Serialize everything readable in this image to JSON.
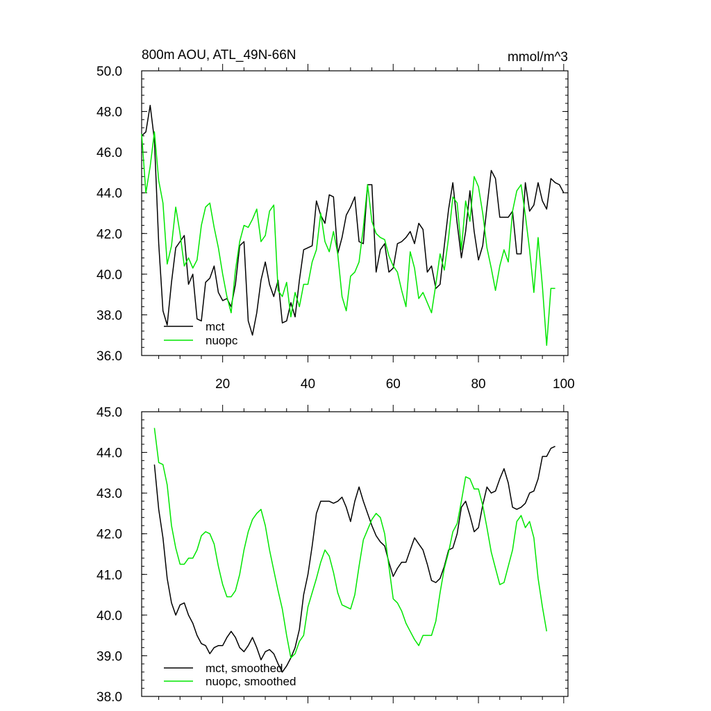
{
  "chart_data": [
    {
      "type": "line",
      "title": "800m AOU, ATL_49N-66N",
      "units": "mmol/m^3",
      "xlim": [
        1,
        101
      ],
      "ylim": [
        36.0,
        50.0
      ],
      "x_tick_labels": [
        "20",
        "40",
        "60",
        "80",
        "100"
      ],
      "x_ticks": [
        20,
        40,
        60,
        80,
        100
      ],
      "y_tick_labels": [
        "36.0",
        "38.0",
        "40.0",
        "42.0",
        "44.0",
        "46.0",
        "48.0",
        "50.0"
      ],
      "y_ticks": [
        36,
        38,
        40,
        42,
        44,
        46,
        48,
        50
      ],
      "legend": [
        "mct",
        "nuopc"
      ],
      "series": [
        {
          "name": "mct",
          "color": "#000000",
          "x_start": 1,
          "values": [
            46.8,
            47.0,
            48.3,
            46.6,
            41.5,
            38.2,
            37.5,
            39.6,
            41.3,
            41.6,
            41.9,
            39.5,
            40.0,
            37.8,
            37.7,
            39.6,
            39.8,
            40.4,
            39.1,
            38.7,
            38.8,
            38.4,
            39.5,
            41.4,
            41.6,
            37.7,
            37.0,
            38.1,
            39.7,
            40.6,
            39.5,
            38.9,
            39.7,
            37.6,
            37.7,
            38.6,
            37.9,
            39.7,
            41.2,
            41.3,
            41.4,
            43.6,
            42.9,
            42.5,
            43.9,
            43.8,
            41.0,
            41.8,
            42.9,
            43.3,
            43.8,
            41.6,
            41.5,
            44.4,
            44.4,
            40.1,
            41.2,
            41.5,
            40.1,
            40.3,
            41.5,
            41.6,
            41.8,
            42.1,
            41.5,
            42.5,
            42.2,
            40.1,
            40.4,
            39.3,
            39.5,
            41.4,
            43.2,
            44.5,
            42.5,
            40.8,
            42.1,
            44.1,
            42.1,
            40.7,
            41.4,
            43.3,
            45.1,
            44.7,
            42.8,
            42.8,
            42.8,
            43.1,
            41.0,
            41.0,
            44.5,
            43.1,
            43.4,
            44.5,
            43.6,
            43.2,
            44.7,
            44.5,
            44.4,
            44.0
          ]
        },
        {
          "name": "nuopc",
          "color": "#00e600",
          "x_start": 1,
          "values": [
            46.9,
            44.0,
            45.3,
            47.0,
            44.6,
            43.5,
            40.5,
            41.4,
            43.3,
            42.0,
            40.4,
            40.8,
            40.3,
            40.7,
            42.4,
            43.3,
            43.5,
            42.3,
            41.3,
            40.0,
            38.9,
            38.1,
            40.2,
            41.6,
            42.4,
            42.3,
            42.7,
            43.2,
            41.6,
            41.9,
            43.1,
            43.4,
            39.2,
            38.9,
            39.6,
            37.9,
            39.1,
            38.4,
            39.5,
            39.5,
            40.6,
            41.2,
            43.0,
            41.6,
            41.1,
            42.1,
            41.0,
            38.9,
            38.2,
            39.9,
            40.1,
            40.6,
            42.3,
            44.4,
            42.6,
            42.0,
            41.8,
            41.7,
            40.9,
            40.4,
            40.1,
            39.2,
            38.4,
            41.1,
            40.3,
            38.8,
            39.1,
            38.6,
            38.1,
            39.5,
            41.0,
            40.2,
            41.8,
            43.8,
            43.5,
            41.2,
            43.6,
            42.6,
            44.8,
            44.3,
            43.0,
            41.3,
            40.3,
            39.2,
            40.4,
            41.2,
            40.6,
            43.1,
            44.1,
            44.4,
            42.9,
            41.2,
            39.1,
            41.8,
            39.4,
            36.5,
            39.3,
            39.3
          ]
        }
      ]
    },
    {
      "type": "line",
      "xlim": [
        1,
        101
      ],
      "ylim": [
        38.0,
        45.0
      ],
      "x_ticks": [
        20,
        40,
        60,
        80,
        100
      ],
      "y_tick_labels": [
        "38.0",
        "39.0",
        "40.0",
        "41.0",
        "42.0",
        "43.0",
        "44.0",
        "45.0"
      ],
      "y_ticks": [
        38,
        39,
        40,
        41,
        42,
        43,
        44,
        45
      ],
      "legend": [
        "mct, smoothed",
        "nuopc, smoothed"
      ],
      "series": [
        {
          "name": "mct, smoothed",
          "color": "#000000",
          "x_start": 4,
          "values": [
            43.7,
            42.6,
            41.9,
            40.9,
            40.3,
            40.0,
            40.25,
            40.3,
            40.0,
            39.8,
            39.5,
            39.3,
            39.25,
            39.05,
            39.2,
            39.25,
            39.25,
            39.45,
            39.6,
            39.45,
            39.2,
            39.1,
            39.25,
            39.45,
            39.2,
            38.9,
            39.1,
            39.15,
            39.05,
            38.8,
            38.6,
            38.75,
            38.95,
            39.2,
            39.65,
            40.5,
            41.0,
            41.7,
            42.5,
            42.8,
            42.8,
            42.8,
            42.75,
            42.8,
            42.9,
            42.65,
            42.3,
            42.8,
            43.15,
            42.8,
            42.5,
            42.2,
            41.95,
            41.8,
            41.7,
            41.3,
            40.95,
            41.15,
            41.3,
            41.3,
            41.6,
            41.9,
            41.75,
            41.6,
            41.25,
            40.85,
            40.8,
            40.9,
            41.2,
            41.6,
            41.65,
            42.0,
            42.65,
            42.8,
            42.45,
            42.05,
            42.15,
            42.7,
            43.15,
            43.0,
            43.05,
            43.35,
            43.6,
            43.25,
            42.65,
            42.6,
            42.65,
            42.75,
            43.0,
            43.05,
            43.35,
            43.9,
            43.9,
            44.1,
            44.15
          ]
        },
        {
          "name": "nuopc, smoothed",
          "color": "#00e600",
          "x_start": 4,
          "values": [
            44.6,
            43.75,
            43.7,
            43.2,
            42.2,
            41.65,
            41.25,
            41.25,
            41.4,
            41.4,
            41.6,
            41.95,
            42.05,
            42.0,
            41.75,
            41.2,
            40.75,
            40.45,
            40.45,
            40.6,
            41.0,
            41.6,
            42.05,
            42.35,
            42.5,
            42.6,
            42.2,
            41.6,
            41.1,
            40.6,
            40.15,
            39.5,
            38.95,
            39.05,
            39.35,
            39.5,
            40.2,
            40.55,
            40.9,
            41.3,
            41.6,
            41.45,
            41.05,
            40.55,
            40.25,
            40.2,
            40.15,
            40.5,
            41.2,
            41.85,
            42.1,
            42.35,
            42.5,
            42.4,
            42.0,
            41.2,
            40.4,
            40.3,
            40.1,
            39.8,
            39.6,
            39.4,
            39.25,
            39.5,
            39.5,
            39.5,
            39.85,
            40.55,
            41.15,
            41.55,
            42.05,
            42.25,
            42.8,
            43.4,
            43.35,
            43.1,
            43.1,
            42.7,
            42.15,
            41.55,
            41.15,
            40.75,
            40.8,
            41.2,
            41.6,
            42.3,
            42.45,
            42.15,
            42.3,
            41.9,
            40.9,
            40.2,
            39.6
          ]
        }
      ]
    }
  ]
}
